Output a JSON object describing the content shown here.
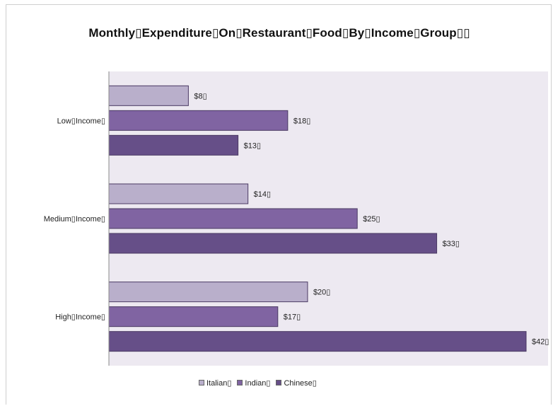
{
  "chart_data": {
    "type": "bar",
    "orientation": "horizontal",
    "title": "Monthly▯Expenditure▯On▯Restaurant▯Food▯By▯Income▯Group▯▯",
    "categories": [
      "Low▯Income▯",
      "Medium▯Income▯",
      "High▯Income▯"
    ],
    "series": [
      {
        "name": "Italian▯",
        "color": "#b9afcb",
        "values": [
          8,
          14,
          20
        ],
        "labels": [
          "$8▯",
          "$14▯",
          "$20▯"
        ]
      },
      {
        "name": "Indian▯",
        "color": "#8064a2",
        "values": [
          18,
          25,
          17
        ],
        "labels": [
          "$18▯",
          "$25▯",
          "$17▯"
        ]
      },
      {
        "name": "Chinese▯",
        "color": "#664f88",
        "values": [
          13,
          33,
          42
        ],
        "labels": [
          "$13▯",
          "$33▯",
          "$42▯"
        ]
      }
    ],
    "xlim": [
      0,
      42
    ],
    "grid": false,
    "legend_position": "bottom",
    "plot_background": "#ede9f1"
  }
}
